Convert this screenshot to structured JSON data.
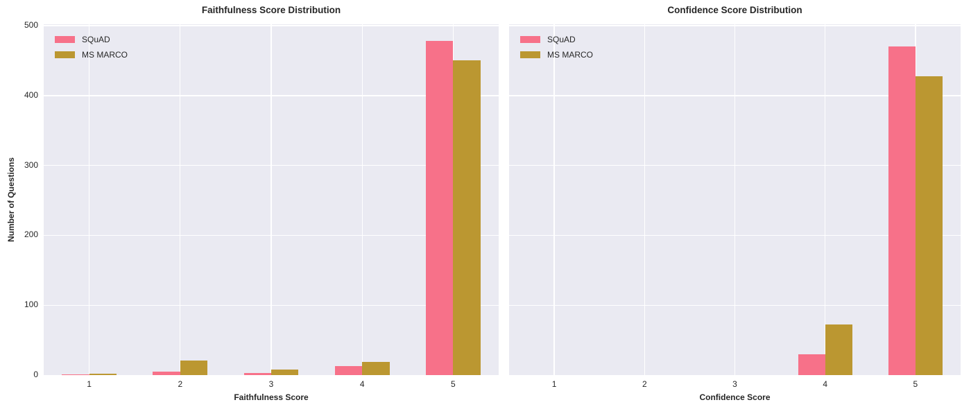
{
  "figure": {
    "background": "#ffffff",
    "axes_background": "#eaeaf2",
    "grid_color": "#ffffff",
    "text_color": "#262626"
  },
  "chart_data": [
    {
      "type": "bar",
      "title": "Faithfulness Score Distribution",
      "xlabel": "Faithfulness Score",
      "ylabel": "Number of Questions",
      "categories": [
        "1",
        "2",
        "3",
        "4",
        "5"
      ],
      "series": [
        {
          "name": "SQuAD",
          "color": "#f77189",
          "values": [
            1,
            5,
            3,
            13,
            478
          ]
        },
        {
          "name": "MS MARCO",
          "color": "#bb9731",
          "values": [
            2,
            21,
            8,
            19,
            450
          ]
        }
      ],
      "ylim": [
        0,
        502
      ],
      "yticks": [
        0,
        100,
        200,
        300,
        400,
        500
      ],
      "grid": true,
      "legend_position": "upper left",
      "show_ytick_labels": true
    },
    {
      "type": "bar",
      "title": "Confidence Score Distribution",
      "xlabel": "Confidence Score",
      "ylabel": "",
      "categories": [
        "1",
        "2",
        "3",
        "4",
        "5"
      ],
      "series": [
        {
          "name": "SQuAD",
          "color": "#f77189",
          "values": [
            0,
            0,
            0,
            30,
            470
          ]
        },
        {
          "name": "MS MARCO",
          "color": "#bb9731",
          "values": [
            0,
            0,
            0,
            72,
            428
          ]
        }
      ],
      "ylim": [
        0,
        502
      ],
      "yticks": [
        0,
        100,
        200,
        300,
        400,
        500
      ],
      "grid": true,
      "legend_position": "upper left",
      "show_ytick_labels": false
    }
  ]
}
